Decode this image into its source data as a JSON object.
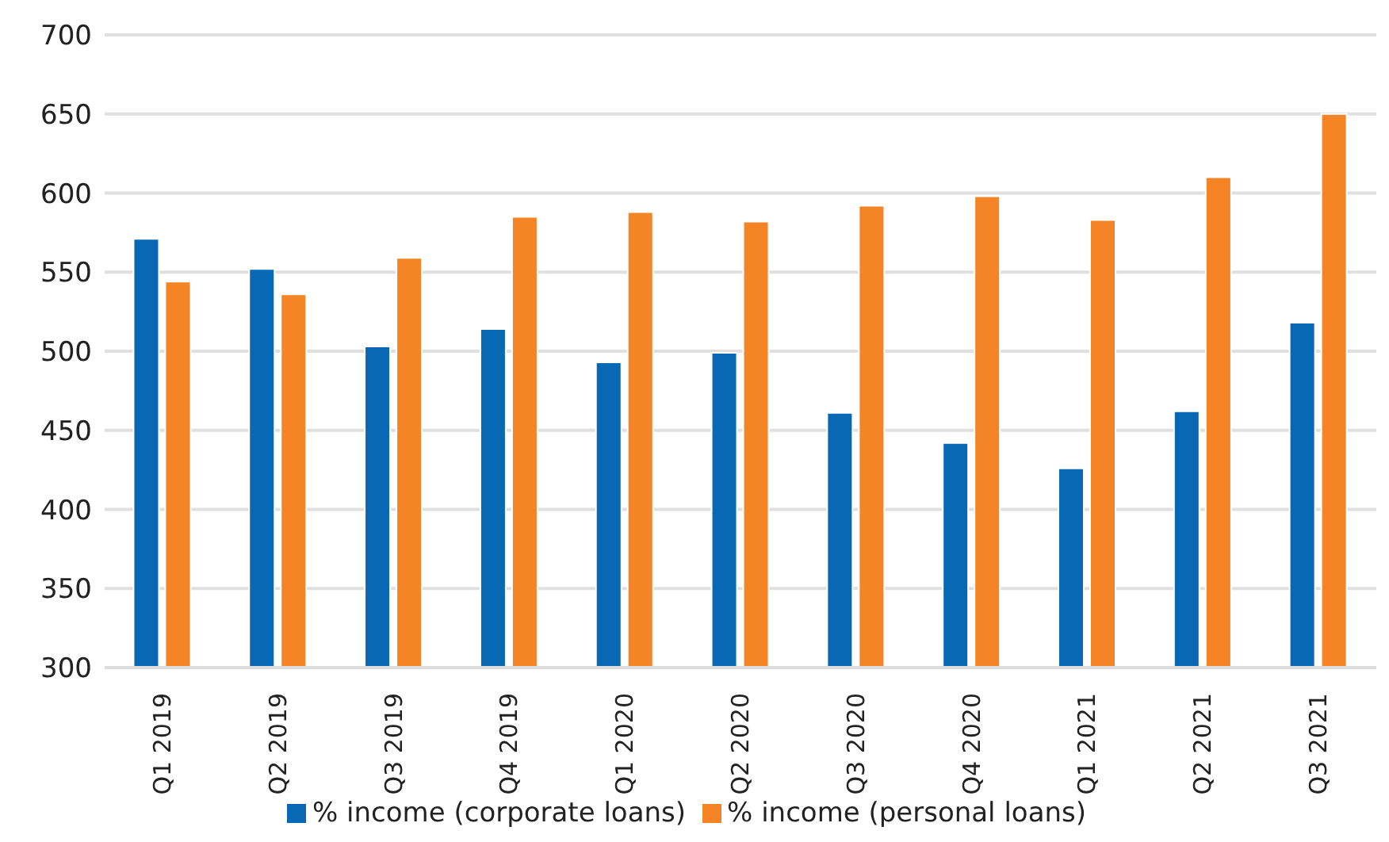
{
  "chart_data": {
    "type": "bar",
    "categories": [
      "Q1 2019",
      "Q2 2019",
      "Q3 2019",
      "Q4 2019",
      "Q1 2020",
      "Q2 2020",
      "Q3 2020",
      "Q4 2020",
      "Q1 2021",
      "Q2 2021",
      "Q3 2021"
    ],
    "series": [
      {
        "name": "% income (corporate loans)",
        "color": "#0868b4",
        "values": [
          571,
          552,
          503,
          514,
          493,
          499,
          461,
          442,
          426,
          462,
          518
        ]
      },
      {
        "name": "% income (personal loans)",
        "color": "#f58426",
        "values": [
          544,
          536,
          559,
          585,
          588,
          582,
          592,
          598,
          583,
          610,
          650
        ]
      }
    ],
    "ylim": [
      300,
      700
    ],
    "yticks": [
      300,
      350,
      400,
      450,
      500,
      550,
      600,
      650,
      700
    ],
    "grid": "y",
    "legend": "bottom"
  }
}
